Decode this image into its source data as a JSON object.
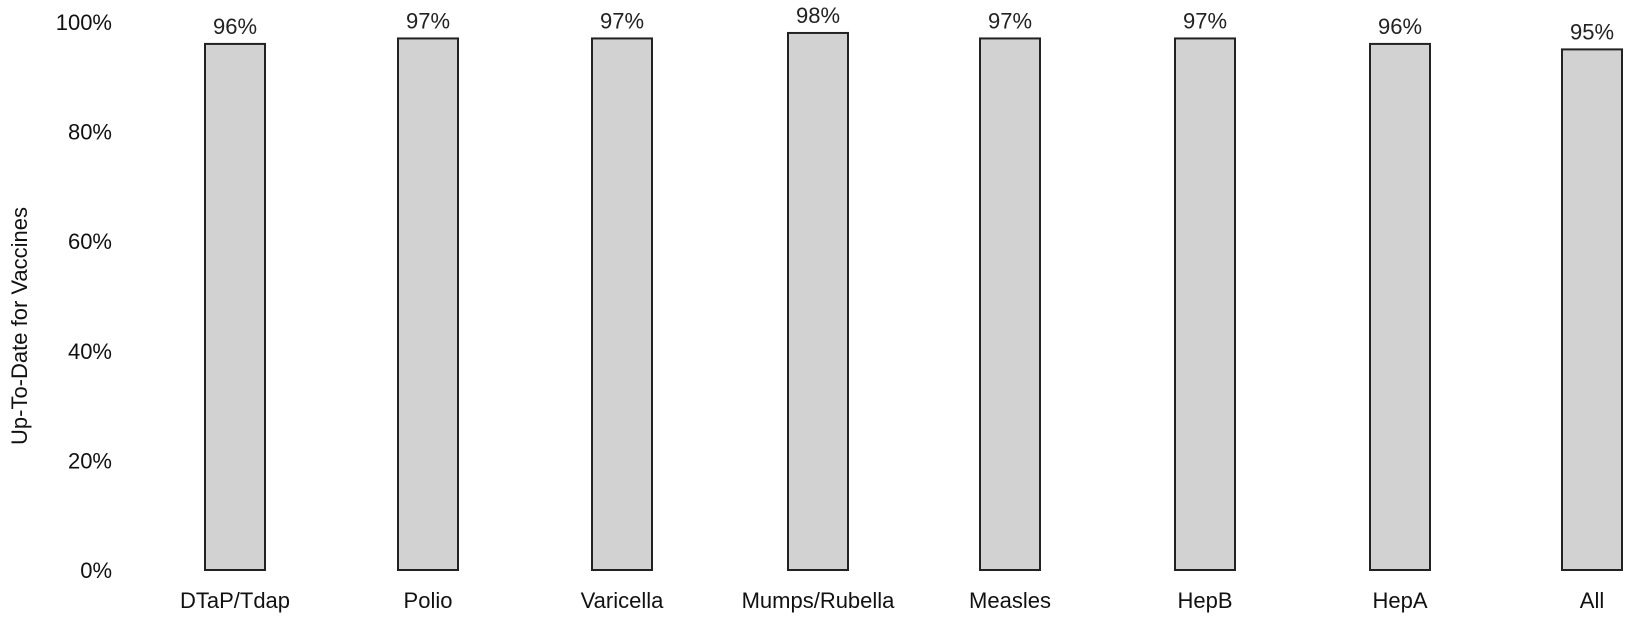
{
  "chart_data": {
    "type": "bar",
    "title": "",
    "xlabel": "",
    "ylabel": "Up-To-Date for Vaccines",
    "categories": [
      "DTaP/Tdap",
      "Polio",
      "Varicella",
      "Mumps/Rubella",
      "Measles",
      "HepB",
      "HepA",
      "All"
    ],
    "values": [
      96,
      97,
      97,
      98,
      97,
      97,
      96,
      95
    ],
    "data_labels": [
      "96%",
      "97%",
      "97%",
      "98%",
      "97%",
      "97%",
      "96%",
      "95%"
    ],
    "ylim": [
      0,
      100
    ],
    "y_ticks": [
      0,
      20,
      40,
      60,
      80,
      100
    ],
    "y_tick_labels": [
      "0%",
      "20%",
      "40%",
      "60%",
      "80%",
      "100%"
    ],
    "grid": false,
    "legend": "none",
    "bar_fill": "#d2d2d2",
    "bar_stroke": "#222222"
  }
}
